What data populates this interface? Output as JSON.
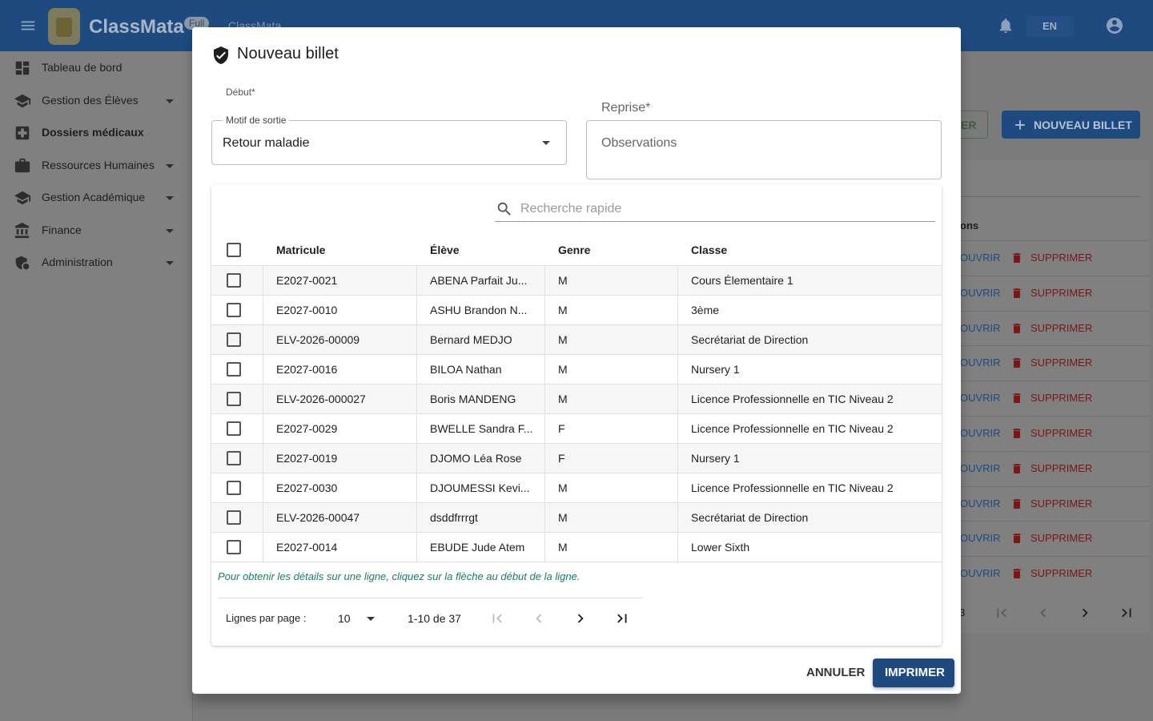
{
  "app": {
    "name": "ClassMata",
    "badge": "Full",
    "breadcrumb": "ClassMata",
    "language": "EN"
  },
  "sidebar": [
    {
      "label": "Tableau de bord",
      "expandable": false,
      "active": false
    },
    {
      "label": "Gestion des Élèves",
      "expandable": true,
      "active": false
    },
    {
      "label": "Dossiers médicaux",
      "expandable": false,
      "active": true
    },
    {
      "label": "Ressources Humaines",
      "expandable": true,
      "active": false
    },
    {
      "label": "Gestion Académique",
      "expandable": true,
      "active": false
    },
    {
      "label": "Finance",
      "expandable": true,
      "active": false
    },
    {
      "label": "Administration",
      "expandable": true,
      "active": false
    }
  ],
  "background": {
    "button_fragment": "ER",
    "new_button": "NOUVEAU BILLET",
    "column_fragment": "ons",
    "row_actions": [
      [
        "OUVRIR",
        "SUPPRIMER"
      ],
      [
        "OUVRIR",
        "SUPPRIMER"
      ],
      [
        "OUVRIR",
        "SUPPRIMER"
      ],
      [
        "OUVRIR",
        "SUPPRIMER"
      ],
      [
        "OUVRIR",
        "SUPPRIMER"
      ],
      [
        "OUVRIR",
        "SUPPRIMER"
      ],
      [
        "OUVRIR",
        "SUPPRIMER"
      ],
      [
        "OUVRIR",
        "SUPPRIMER"
      ],
      [
        "OUVRIR",
        "SUPPRIMER"
      ],
      [
        "OUVRIR",
        "SUPPRIMER"
      ]
    ],
    "page_fragment": "3"
  },
  "dialog": {
    "title": "Nouveau billet",
    "start_label": "Début*",
    "reason": {
      "label": "Motif de sortie",
      "value": "Retour maladie"
    },
    "resume_label": "Reprise*",
    "observations_placeholder": "Observations",
    "search_placeholder": "Recherche rapide",
    "table": {
      "columns": [
        "Matricule",
        "Élève",
        "Genre",
        "Classe"
      ],
      "rows": [
        [
          "E2027-0021",
          "ABENA Parfait Ju...",
          "M",
          "Cours Élementaire 1"
        ],
        [
          "E2027-0010",
          "ASHU Brandon N...",
          "M",
          "3ème"
        ],
        [
          "ELV-2026-00009",
          "Bernard MEDJO",
          "M",
          "Secrétariat de Direction"
        ],
        [
          "E2027-0016",
          "BILOA Nathan",
          "M",
          "Nursery 1"
        ],
        [
          "ELV-2026-000027",
          "Boris MANDENG",
          "M",
          "Licence Professionnelle en TIC Niveau 2"
        ],
        [
          "E2027-0029",
          "BWELLE Sandra F...",
          "F",
          "Licence Professionnelle en TIC Niveau 2"
        ],
        [
          "E2027-0019",
          "DJOMO Léa Rose",
          "F",
          "Nursery 1"
        ],
        [
          "E2027-0030",
          "DJOUMESSI Kevi...",
          "M",
          "Licence Professionnelle en TIC Niveau 2"
        ],
        [
          "ELV-2026-00047",
          "dsddfrrrgt",
          "M",
          "Secrétariat de Direction"
        ],
        [
          "E2027-0014",
          "EBUDE Jude Atem",
          "M",
          "Lower Sixth"
        ]
      ]
    },
    "hint": "Pour obtenir les détails sur une ligne, cliquez sur la flèche au début de la ligne.",
    "pagination": {
      "rows_per_page_label": "Lignes par page :",
      "rows_per_page": 10,
      "range": "1-10 de 37"
    },
    "actions": [
      "ANNULER",
      "IMPRIMER"
    ]
  }
}
